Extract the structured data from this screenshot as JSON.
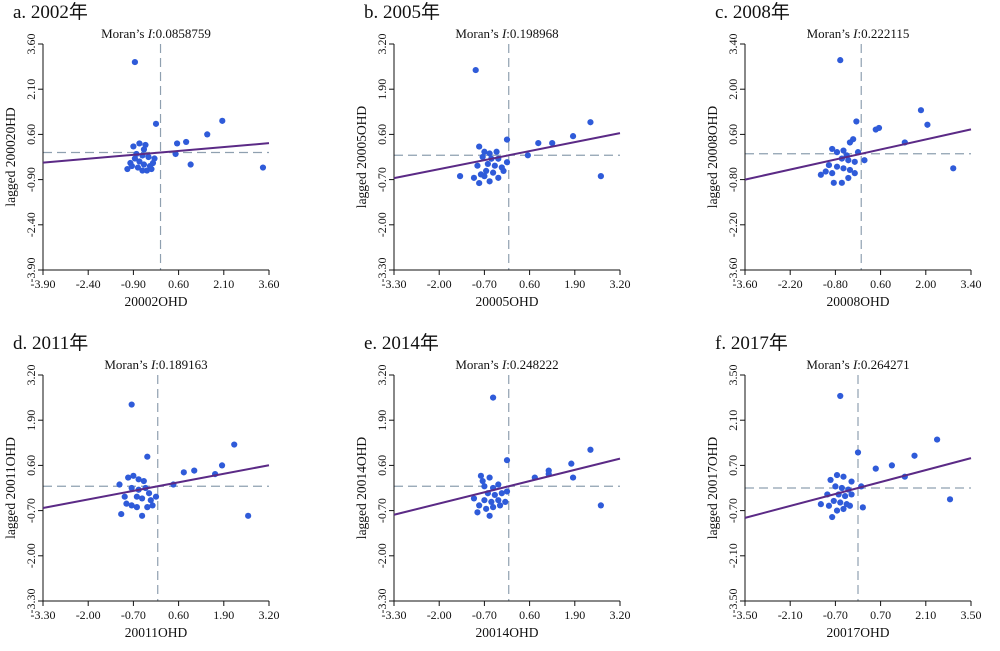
{
  "style": {
    "point_color": "#2f5bd9",
    "fit_line_color": "#5b2a86",
    "mean_line_color": "#8fa0b0",
    "axis_color": "#111111"
  },
  "chart_data": [
    {
      "type": "scatter",
      "panel_title": "a. 2002年",
      "moran_prefix": "Moran’s ",
      "moran_symbol": "I",
      "moran_value": ":0.0858759",
      "xlabel": "20002OHD",
      "ylabel": "lagged 200020HD",
      "xlim": [
        -3.9,
        3.6
      ],
      "ylim": [
        -3.9,
        3.6
      ],
      "xticks": [
        "-3.90",
        "-2.40",
        "-0.90",
        "0.60",
        "2.10",
        "3.60"
      ],
      "yticks": [
        "-3.90",
        "-2.40",
        "-0.90",
        "0.60",
        "2.10",
        "3.60"
      ],
      "slope": 0.0858759,
      "points": [
        [
          -0.85,
          3.0
        ],
        [
          -0.15,
          0.95
        ],
        [
          0.55,
          0.3
        ],
        [
          0.85,
          0.35
        ],
        [
          1.55,
          0.6
        ],
        [
          2.05,
          1.05
        ],
        [
          1.0,
          -0.4
        ],
        [
          0.5,
          -0.05
        ],
        [
          -0.9,
          0.2
        ],
        [
          -0.7,
          0.3
        ],
        [
          -0.5,
          0.25
        ],
        [
          -0.55,
          0.1
        ],
        [
          -0.8,
          -0.05
        ],
        [
          -0.6,
          -0.1
        ],
        [
          -0.4,
          -0.15
        ],
        [
          -0.7,
          -0.3
        ],
        [
          -0.55,
          -0.4
        ],
        [
          -0.35,
          -0.45
        ],
        [
          -0.25,
          -0.35
        ],
        [
          -0.95,
          -0.45
        ],
        [
          -1.1,
          -0.55
        ],
        [
          -0.75,
          -0.5
        ],
        [
          -0.45,
          -0.6
        ],
        [
          -0.3,
          -0.55
        ],
        [
          -0.6,
          -0.6
        ],
        [
          -0.85,
          -0.2
        ],
        [
          -0.2,
          -0.2
        ],
        [
          -1.0,
          -0.35
        ],
        [
          3.4,
          -0.5
        ]
      ]
    },
    {
      "type": "scatter",
      "panel_title": "b. 2005年",
      "moran_prefix": "Moran’s ",
      "moran_symbol": "I",
      "moran_value": ":0.198968",
      "xlabel": "20005OHD",
      "ylabel": "lagged 20005OHD",
      "xlim": [
        -3.3,
        3.2
      ],
      "ylim": [
        -3.3,
        3.2
      ],
      "xticks": [
        "-3.30",
        "-2.00",
        "-0.70",
        "0.60",
        "1.90",
        "3.20"
      ],
      "yticks": [
        "-3.30",
        "-2.00",
        "-0.70",
        "0.60",
        "1.90",
        "3.20"
      ],
      "slope": 0.198968,
      "points": [
        [
          -0.95,
          2.45
        ],
        [
          -0.05,
          0.45
        ],
        [
          0.85,
          0.35
        ],
        [
          1.25,
          0.35
        ],
        [
          1.85,
          0.55
        ],
        [
          2.35,
          0.95
        ],
        [
          2.65,
          -0.6
        ],
        [
          0.55,
          0.0
        ],
        [
          -0.85,
          0.25
        ],
        [
          -0.7,
          0.1
        ],
        [
          -0.55,
          0.05
        ],
        [
          -0.35,
          0.1
        ],
        [
          -0.75,
          -0.05
        ],
        [
          -0.5,
          -0.1
        ],
        [
          -0.3,
          -0.1
        ],
        [
          -0.6,
          -0.25
        ],
        [
          -0.4,
          -0.3
        ],
        [
          -0.2,
          -0.35
        ],
        [
          -0.05,
          -0.2
        ],
        [
          -0.65,
          -0.45
        ],
        [
          -0.8,
          -0.55
        ],
        [
          -1.0,
          -0.65
        ],
        [
          -0.85,
          -0.8
        ],
        [
          -0.55,
          -0.75
        ],
        [
          -0.7,
          -0.6
        ],
        [
          -0.45,
          -0.5
        ],
        [
          -1.4,
          -0.6
        ],
        [
          -0.3,
          -0.65
        ],
        [
          -0.15,
          -0.45
        ],
        [
          -0.9,
          -0.3
        ]
      ]
    },
    {
      "type": "scatter",
      "panel_title": "c. 2008年",
      "moran_prefix": "Moran’s ",
      "moran_symbol": "I",
      "moran_value": ":0.222115",
      "xlabel": "20008OHD",
      "ylabel": "lagged 20008OHD",
      "xlim": [
        -3.6,
        3.4
      ],
      "ylim": [
        -3.6,
        3.4
      ],
      "xticks": [
        "-3.60",
        "-2.20",
        "-0.80",
        "0.60",
        "2.00",
        "3.40"
      ],
      "yticks": [
        "-3.60",
        "-2.20",
        "-0.80",
        "0.60",
        "2.00",
        "3.40"
      ],
      "slope": 0.222115,
      "points": [
        [
          -0.65,
          2.9
        ],
        [
          -0.15,
          1.0
        ],
        [
          0.45,
          0.75
        ],
        [
          0.55,
          0.8
        ],
        [
          1.35,
          0.35
        ],
        [
          1.85,
          1.35
        ],
        [
          2.05,
          0.9
        ],
        [
          2.85,
          -0.45
        ],
        [
          -0.9,
          0.15
        ],
        [
          -0.75,
          0.05
        ],
        [
          -0.55,
          0.1
        ],
        [
          -0.35,
          0.35
        ],
        [
          -0.25,
          0.45
        ],
        [
          -0.6,
          -0.15
        ],
        [
          -0.4,
          -0.2
        ],
        [
          -0.2,
          -0.25
        ],
        [
          -0.1,
          0.05
        ],
        [
          -0.75,
          -0.4
        ],
        [
          -0.55,
          -0.45
        ],
        [
          -0.35,
          -0.5
        ],
        [
          -0.9,
          -0.6
        ],
        [
          -1.1,
          -0.55
        ],
        [
          -1.25,
          -0.65
        ],
        [
          -0.85,
          -0.9
        ],
        [
          -0.6,
          -0.9
        ],
        [
          -0.4,
          -0.75
        ],
        [
          -0.2,
          -0.6
        ],
        [
          0.1,
          -0.2
        ],
        [
          -1.0,
          -0.35
        ],
        [
          -0.45,
          -0.05
        ]
      ]
    },
    {
      "type": "scatter",
      "panel_title": "d. 2011年",
      "moran_prefix": "Moran’s ",
      "moran_symbol": "I",
      "moran_value": ":0.189163",
      "xlabel": "20011OHD",
      "ylabel": "lagged 20011OHD",
      "xlim": [
        -3.3,
        3.2
      ],
      "ylim": [
        -3.3,
        3.2
      ],
      "xticks": [
        "-3.30",
        "-2.00",
        "-0.70",
        "0.60",
        "1.90",
        "3.20"
      ],
      "yticks": [
        "-3.30",
        "-2.00",
        "-0.70",
        "0.60",
        "1.90",
        "3.20"
      ],
      "slope": 0.189163,
      "points": [
        [
          -0.75,
          2.35
        ],
        [
          -0.3,
          0.85
        ],
        [
          0.75,
          0.4
        ],
        [
          1.05,
          0.45
        ],
        [
          1.65,
          0.35
        ],
        [
          1.85,
          0.6
        ],
        [
          2.2,
          1.2
        ],
        [
          2.6,
          -0.85
        ],
        [
          0.45,
          0.05
        ],
        [
          -0.85,
          0.25
        ],
        [
          -0.7,
          0.3
        ],
        [
          -0.55,
          0.2
        ],
        [
          -0.4,
          0.15
        ],
        [
          -0.75,
          -0.05
        ],
        [
          -0.55,
          -0.1
        ],
        [
          -0.35,
          -0.05
        ],
        [
          -0.25,
          -0.2
        ],
        [
          -0.6,
          -0.3
        ],
        [
          -0.45,
          -0.35
        ],
        [
          -0.2,
          -0.4
        ],
        [
          -0.05,
          -0.3
        ],
        [
          -0.9,
          -0.5
        ],
        [
          -0.75,
          -0.55
        ],
        [
          -0.6,
          -0.6
        ],
        [
          -0.45,
          -0.85
        ],
        [
          -0.3,
          -0.6
        ],
        [
          -1.05,
          -0.8
        ],
        [
          -0.95,
          -0.3
        ],
        [
          -0.15,
          -0.55
        ],
        [
          -1.1,
          0.05
        ]
      ]
    },
    {
      "type": "scatter",
      "panel_title": "e. 2014年",
      "moran_prefix": "Moran’s ",
      "moran_symbol": "I",
      "moran_value": ":0.248222",
      "xlabel": "20014OHD",
      "ylabel": "lagged 20014OHD",
      "xlim": [
        -3.3,
        3.2
      ],
      "ylim": [
        -3.3,
        3.2
      ],
      "xticks": [
        "-3.30",
        "-2.00",
        "-0.70",
        "0.60",
        "1.90",
        "3.20"
      ],
      "yticks": [
        "-3.30",
        "-2.00",
        "-0.70",
        "0.60",
        "1.90",
        "3.20"
      ],
      "slope": 0.248222,
      "points": [
        [
          -0.45,
          2.55
        ],
        [
          -0.05,
          0.75
        ],
        [
          0.75,
          0.25
        ],
        [
          1.15,
          0.35
        ],
        [
          1.15,
          0.45
        ],
        [
          1.85,
          0.25
        ],
        [
          2.35,
          1.05
        ],
        [
          2.65,
          -0.55
        ],
        [
          1.8,
          0.65
        ],
        [
          -0.8,
          0.3
        ],
        [
          -0.55,
          0.25
        ],
        [
          -0.45,
          -0.05
        ],
        [
          -0.7,
          0.0
        ],
        [
          -0.3,
          0.05
        ],
        [
          -0.6,
          -0.2
        ],
        [
          -0.4,
          -0.25
        ],
        [
          -0.2,
          -0.2
        ],
        [
          -0.05,
          -0.15
        ],
        [
          -0.7,
          -0.4
        ],
        [
          -0.5,
          -0.45
        ],
        [
          -0.3,
          -0.4
        ],
        [
          -0.85,
          -0.55
        ],
        [
          -0.65,
          -0.65
        ],
        [
          -0.45,
          -0.6
        ],
        [
          -0.25,
          -0.55
        ],
        [
          -0.9,
          -0.75
        ],
        [
          -0.55,
          -0.85
        ],
        [
          -1.0,
          -0.35
        ],
        [
          -0.1,
          -0.45
        ],
        [
          -0.75,
          0.15
        ]
      ]
    },
    {
      "type": "scatter",
      "panel_title": "f. 2017年",
      "moran_prefix": "Moran’s ",
      "moran_symbol": "I",
      "moran_value": ":0.264271",
      "xlabel": "20017OHD",
      "ylabel": "lagged 20017OHD",
      "xlim": [
        -3.5,
        3.5
      ],
      "ylim": [
        -3.5,
        3.5
      ],
      "xticks": [
        "-3.50",
        "-2.10",
        "-0.70",
        "0.70",
        "2.10",
        "3.50"
      ],
      "yticks": [
        "-3.50",
        "-2.10",
        "-0.70",
        "0.70",
        "2.10",
        "3.50"
      ],
      "slope": 0.264271,
      "points": [
        [
          -0.55,
          2.85
        ],
        [
          0.0,
          1.1
        ],
        [
          0.55,
          0.6
        ],
        [
          1.05,
          0.7
        ],
        [
          1.45,
          0.35
        ],
        [
          1.75,
          1.0
        ],
        [
          2.45,
          1.5
        ],
        [
          2.85,
          -0.35
        ],
        [
          -0.85,
          0.25
        ],
        [
          -0.65,
          0.4
        ],
        [
          -0.45,
          0.35
        ],
        [
          -0.2,
          0.2
        ],
        [
          -0.7,
          0.05
        ],
        [
          -0.5,
          0.0
        ],
        [
          -0.3,
          -0.05
        ],
        [
          -0.6,
          -0.2
        ],
        [
          -0.4,
          -0.25
        ],
        [
          -0.2,
          -0.2
        ],
        [
          0.1,
          0.05
        ],
        [
          -0.75,
          -0.4
        ],
        [
          -0.55,
          -0.45
        ],
        [
          -0.35,
          -0.5
        ],
        [
          -0.9,
          -0.55
        ],
        [
          -0.65,
          -0.7
        ],
        [
          -0.45,
          -0.65
        ],
        [
          -0.25,
          -0.55
        ],
        [
          -1.15,
          -0.5
        ],
        [
          -0.8,
          -0.9
        ],
        [
          0.15,
          -0.6
        ],
        [
          -0.95,
          -0.2
        ]
      ]
    }
  ]
}
